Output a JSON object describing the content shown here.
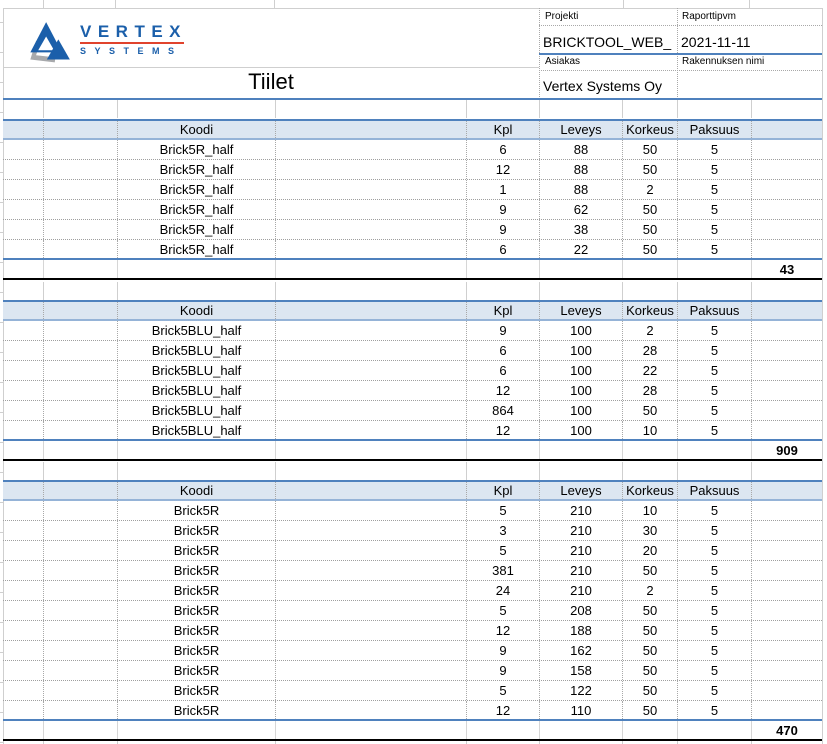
{
  "logo": {
    "brand": "VERTEX",
    "sub": "SYSTEMS"
  },
  "header": {
    "title": "Tiilet",
    "fields": [
      {
        "label": "Projekti",
        "value": "BRICKTOOL_WEB_"
      },
      {
        "label": "Raporttipvm",
        "value": "2021-11-11"
      },
      {
        "label": "Asiakas",
        "value": "Vertex Systems Oy"
      },
      {
        "label": "Rakennuksen nimi",
        "value": ""
      }
    ]
  },
  "columns": {
    "koodi": "Koodi",
    "kpl": "Kpl",
    "leveys": "Leveys",
    "korkeus": "Korkeus",
    "paksuus": "Paksuus"
  },
  "tables": [
    {
      "rows": [
        {
          "koodi": "Brick5R_half",
          "kpl": "6",
          "leveys": "88",
          "korkeus": "50",
          "paksuus": "5"
        },
        {
          "koodi": "Brick5R_half",
          "kpl": "12",
          "leveys": "88",
          "korkeus": "50",
          "paksuus": "5"
        },
        {
          "koodi": "Brick5R_half",
          "kpl": "1",
          "leveys": "88",
          "korkeus": "2",
          "paksuus": "5"
        },
        {
          "koodi": "Brick5R_half",
          "kpl": "9",
          "leveys": "62",
          "korkeus": "50",
          "paksuus": "5"
        },
        {
          "koodi": "Brick5R_half",
          "kpl": "9",
          "leveys": "38",
          "korkeus": "50",
          "paksuus": "5"
        },
        {
          "koodi": "Brick5R_half",
          "kpl": "6",
          "leveys": "22",
          "korkeus": "50",
          "paksuus": "5"
        }
      ],
      "total": "43"
    },
    {
      "rows": [
        {
          "koodi": "Brick5BLU_half",
          "kpl": "9",
          "leveys": "100",
          "korkeus": "2",
          "paksuus": "5"
        },
        {
          "koodi": "Brick5BLU_half",
          "kpl": "6",
          "leveys": "100",
          "korkeus": "28",
          "paksuus": "5"
        },
        {
          "koodi": "Brick5BLU_half",
          "kpl": "6",
          "leveys": "100",
          "korkeus": "22",
          "paksuus": "5"
        },
        {
          "koodi": "Brick5BLU_half",
          "kpl": "12",
          "leveys": "100",
          "korkeus": "28",
          "paksuus": "5"
        },
        {
          "koodi": "Brick5BLU_half",
          "kpl": "864",
          "leveys": "100",
          "korkeus": "50",
          "paksuus": "5"
        },
        {
          "koodi": "Brick5BLU_half",
          "kpl": "12",
          "leveys": "100",
          "korkeus": "10",
          "paksuus": "5"
        }
      ],
      "total": "909"
    },
    {
      "rows": [
        {
          "koodi": "Brick5R",
          "kpl": "5",
          "leveys": "210",
          "korkeus": "10",
          "paksuus": "5"
        },
        {
          "koodi": "Brick5R",
          "kpl": "3",
          "leveys": "210",
          "korkeus": "30",
          "paksuus": "5"
        },
        {
          "koodi": "Brick5R",
          "kpl": "5",
          "leveys": "210",
          "korkeus": "20",
          "paksuus": "5"
        },
        {
          "koodi": "Brick5R",
          "kpl": "381",
          "leveys": "210",
          "korkeus": "50",
          "paksuus": "5"
        },
        {
          "koodi": "Brick5R",
          "kpl": "24",
          "leveys": "210",
          "korkeus": "2",
          "paksuus": "5"
        },
        {
          "koodi": "Brick5R",
          "kpl": "5",
          "leveys": "208",
          "korkeus": "50",
          "paksuus": "5"
        },
        {
          "koodi": "Brick5R",
          "kpl": "12",
          "leveys": "188",
          "korkeus": "50",
          "paksuus": "5"
        },
        {
          "koodi": "Brick5R",
          "kpl": "9",
          "leveys": "162",
          "korkeus": "50",
          "paksuus": "5"
        },
        {
          "koodi": "Brick5R",
          "kpl": "9",
          "leveys": "158",
          "korkeus": "50",
          "paksuus": "5"
        },
        {
          "koodi": "Brick5R",
          "kpl": "5",
          "leveys": "122",
          "korkeus": "50",
          "paksuus": "5"
        },
        {
          "koodi": "Brick5R",
          "kpl": "12",
          "leveys": "110",
          "korkeus": "50",
          "paksuus": "5"
        }
      ],
      "total": "470"
    }
  ],
  "colors": {
    "accent_blue": "#4F81BD",
    "light_blue_border": "#95B3D7",
    "header_fill": "#DCE6F1",
    "logo_blue": "#1B5FAA",
    "logo_red": "#E0432D",
    "logo_gray": "#A7A9AC"
  }
}
